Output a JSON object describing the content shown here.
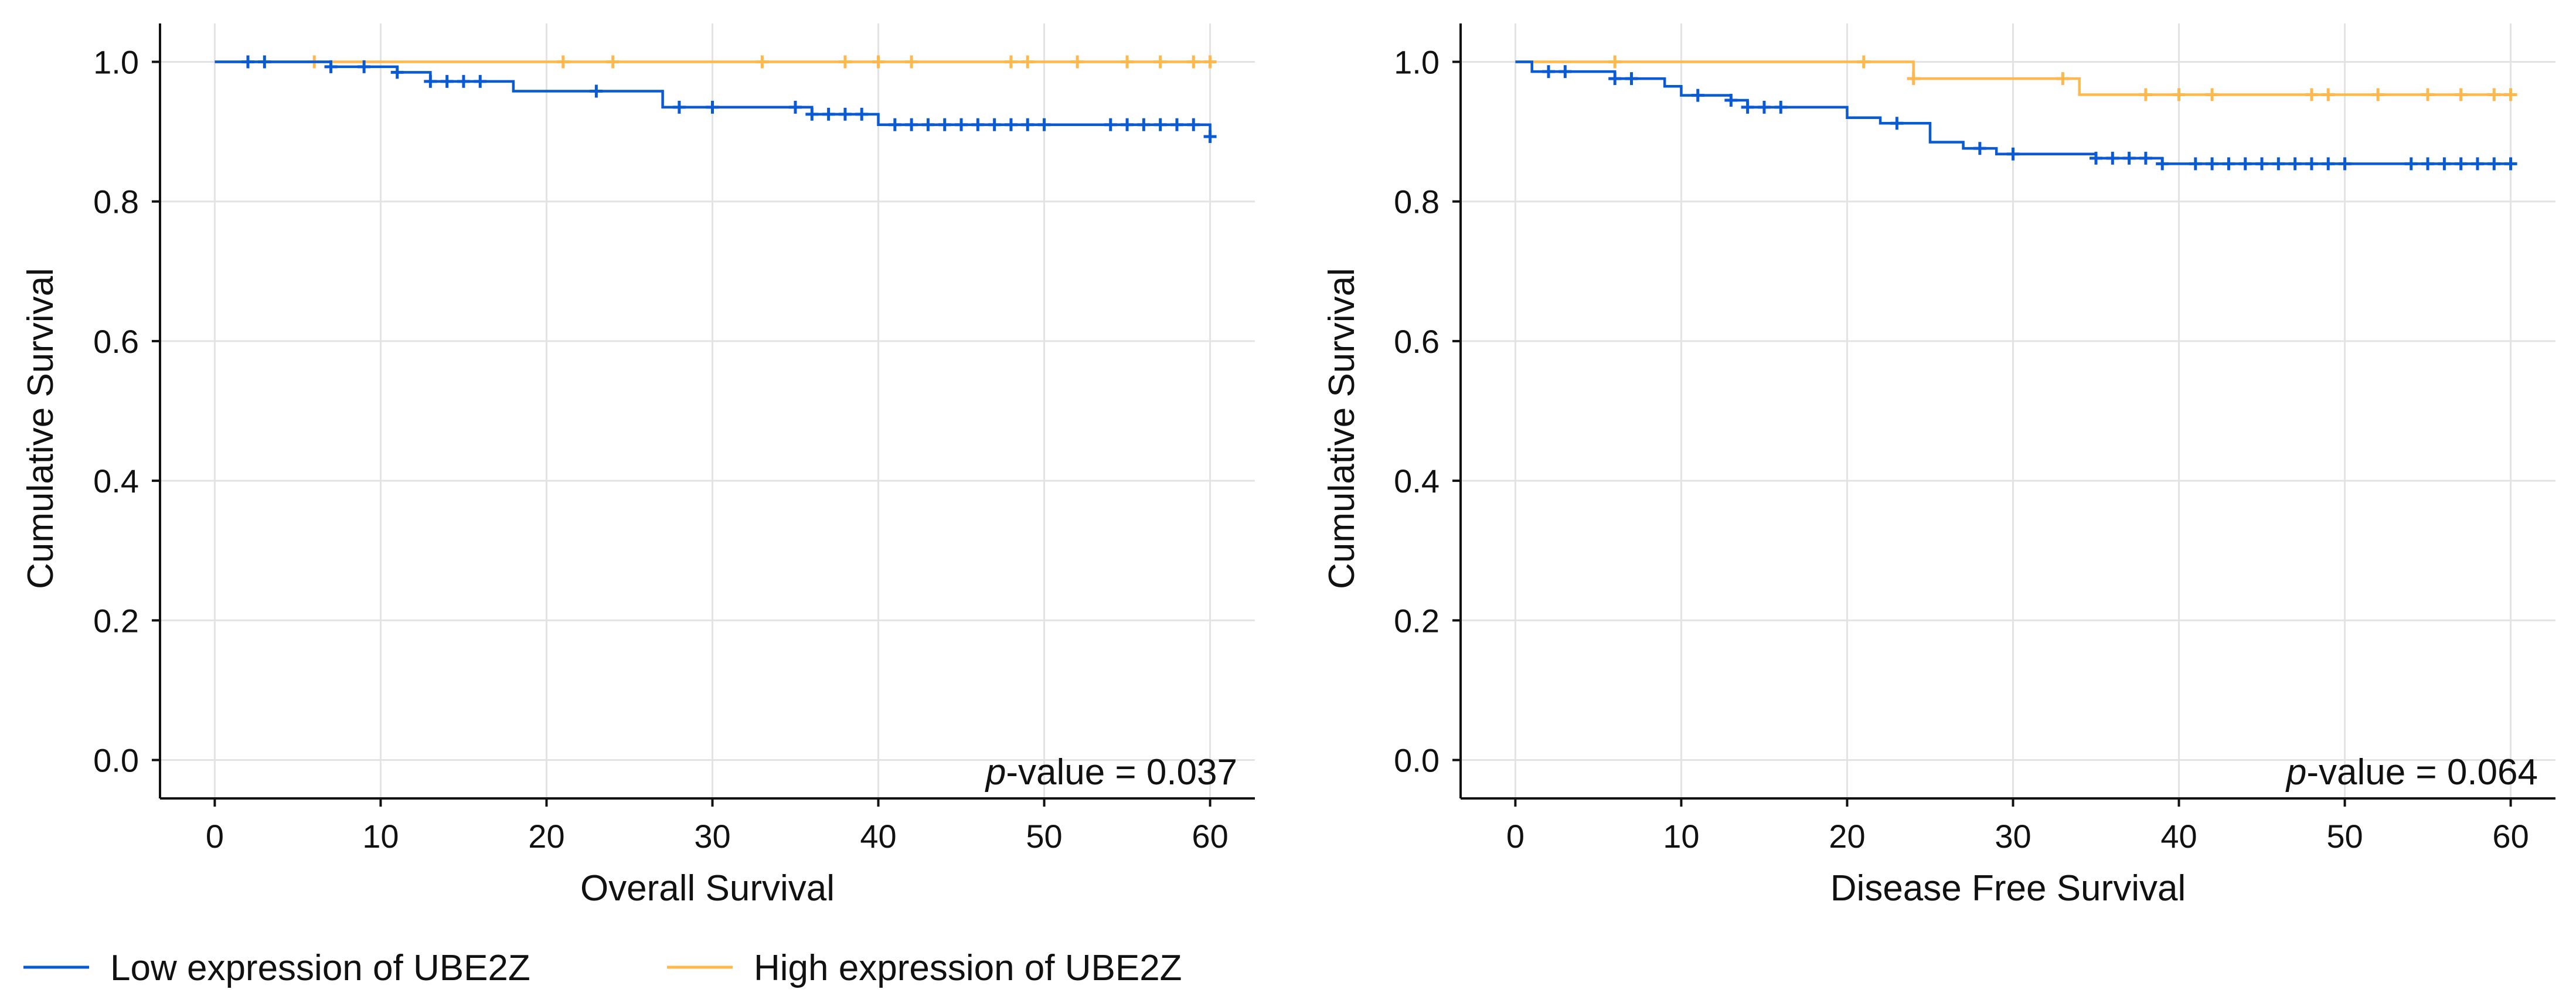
{
  "colors": {
    "low": "#0a5bd3",
    "high": "#ffb84d",
    "grid": "#e3e3e3",
    "axis": "#111111"
  },
  "legend": [
    {
      "label": "Low expression of UBE2Z",
      "series": "low"
    },
    {
      "label": "High expression of UBE2Z",
      "series": "high"
    }
  ],
  "chart_data": [
    {
      "type": "line",
      "subtype": "kaplan-meier-step",
      "xlabel": "Overall Survival",
      "ylabel": "Cumulative Survival",
      "xlim": [
        -3.3,
        62.7
      ],
      "ylim": [
        -0.055,
        1.055
      ],
      "xticks": [
        0,
        10,
        20,
        30,
        40,
        50,
        60
      ],
      "yticks": [
        0.0,
        0.2,
        0.4,
        0.6,
        0.8,
        1.0
      ],
      "annotation": {
        "prefix": "p",
        "text": "-value = 0.037"
      },
      "series": [
        {
          "name": "Low expression of UBE2Z",
          "key": "low",
          "steps": [
            [
              0,
              1.0
            ],
            [
              7,
              0.993
            ],
            [
              11,
              0.985
            ],
            [
              13,
              0.972
            ],
            [
              18,
              0.958
            ],
            [
              27,
              0.935
            ],
            [
              36,
              0.925
            ],
            [
              40,
              0.91
            ],
            [
              60,
              0.893
            ]
          ],
          "censored": [
            2,
            3,
            7,
            9,
            11,
            13,
            14,
            15,
            16,
            23,
            28,
            30,
            35,
            36,
            37,
            38,
            39,
            41,
            42,
            43,
            44,
            45,
            46,
            47,
            48,
            49,
            50,
            54,
            55,
            56,
            57,
            58,
            59,
            60
          ]
        },
        {
          "name": "High expression of UBE2Z",
          "key": "high",
          "steps": [
            [
              0,
              1.0
            ],
            [
              60,
              1.0
            ]
          ],
          "censored": [
            6,
            21,
            24,
            33,
            38,
            40,
            42,
            48,
            49,
            52,
            55,
            57,
            59,
            60
          ]
        }
      ]
    },
    {
      "type": "line",
      "subtype": "kaplan-meier-step",
      "xlabel": "Disease Free Survival",
      "ylabel": "Cumulative Survival",
      "xlim": [
        -3.3,
        62.7
      ],
      "ylim": [
        -0.055,
        1.055
      ],
      "xticks": [
        0,
        10,
        20,
        30,
        40,
        50,
        60
      ],
      "yticks": [
        0.0,
        0.2,
        0.4,
        0.6,
        0.8,
        1.0
      ],
      "annotation": {
        "prefix": "p",
        "text": "-value = 0.064"
      },
      "series": [
        {
          "name": "Low expression of UBE2Z",
          "key": "low",
          "steps": [
            [
              0,
              1.0
            ],
            [
              1,
              0.986
            ],
            [
              6,
              0.976
            ],
            [
              9,
              0.965
            ],
            [
              10,
              0.952
            ],
            [
              13,
              0.945
            ],
            [
              14,
              0.935
            ],
            [
              20,
              0.92
            ],
            [
              22,
              0.912
            ],
            [
              25,
              0.885
            ],
            [
              27,
              0.876
            ],
            [
              29,
              0.868
            ],
            [
              35,
              0.862
            ],
            [
              39,
              0.854
            ],
            [
              60,
              0.854
            ]
          ],
          "censored": [
            2,
            3,
            6,
            7,
            11,
            13,
            14,
            15,
            16,
            23,
            28,
            30,
            35,
            36,
            37,
            38,
            39,
            41,
            42,
            43,
            44,
            45,
            46,
            47,
            48,
            49,
            50,
            54,
            55,
            56,
            57,
            58,
            59,
            60
          ]
        },
        {
          "name": "High expression of UBE2Z",
          "key": "high",
          "steps": [
            [
              0,
              1.0
            ],
            [
              24,
              0.976
            ],
            [
              34,
              0.953
            ],
            [
              60,
              0.953
            ]
          ],
          "censored": [
            6,
            21,
            24,
            33,
            38,
            40,
            42,
            48,
            49,
            52,
            55,
            57,
            59,
            60
          ]
        }
      ]
    }
  ]
}
